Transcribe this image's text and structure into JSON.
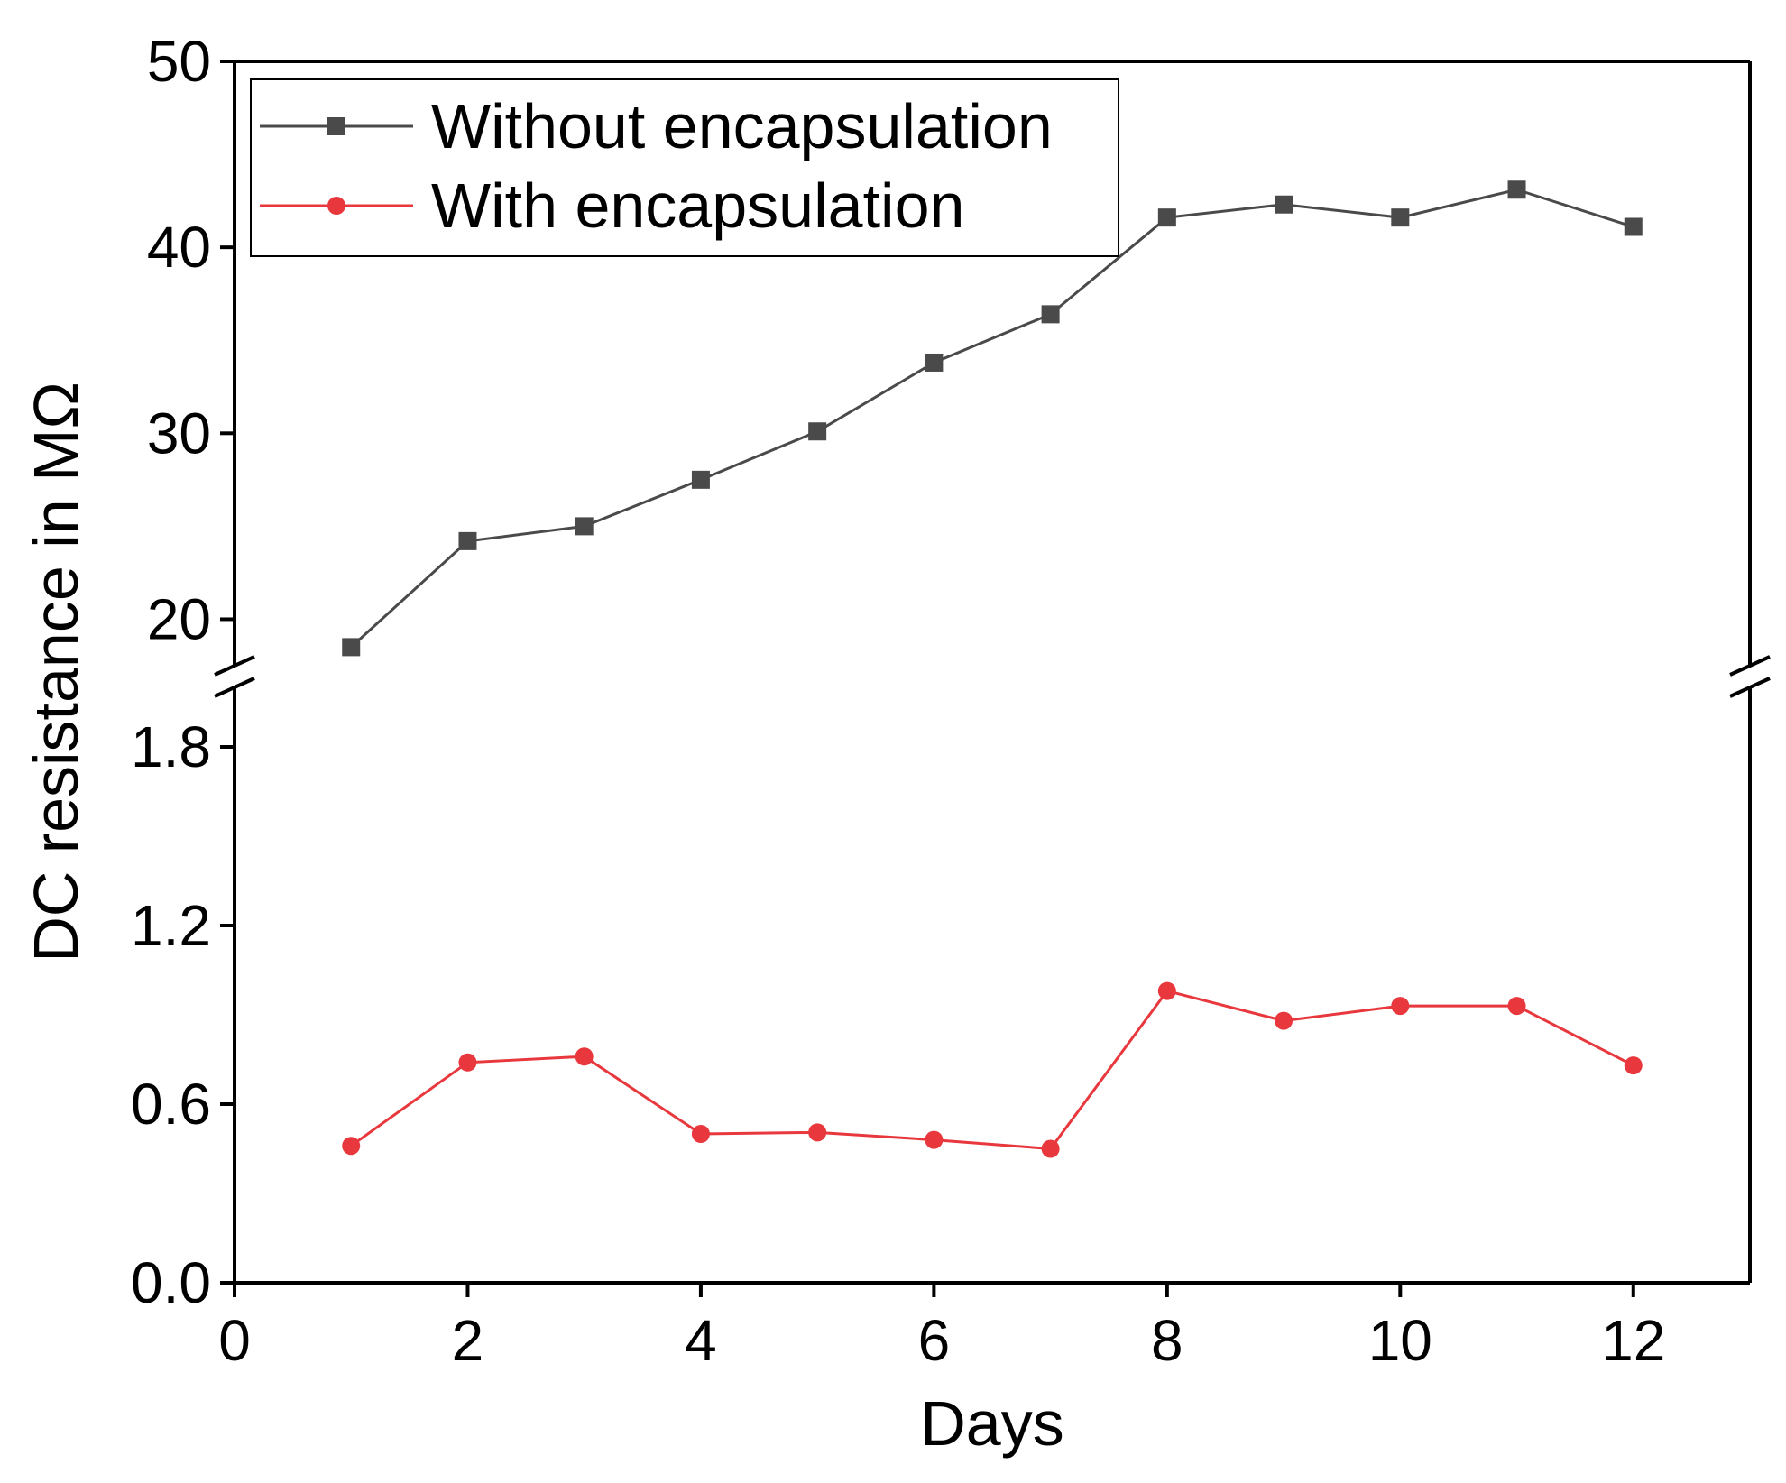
{
  "chart_data": {
    "type": "line",
    "title": "",
    "xlabel": "Days",
    "ylabel": "DC resistance in MΩ",
    "xlim": [
      0,
      13
    ],
    "x_ticks": [
      0,
      2,
      4,
      6,
      8,
      10,
      12
    ],
    "y_break": {
      "lower": {
        "range": [
          0,
          2.0
        ],
        "ticks": [
          0.0,
          0.6,
          1.2,
          1.8
        ],
        "tick_labels": [
          "0.0",
          "0.6",
          "1.2",
          "1.8"
        ]
      },
      "upper": {
        "range": [
          17.5,
          50
        ],
        "ticks": [
          20,
          30,
          40,
          50
        ],
        "tick_labels": [
          "20",
          "30",
          "40",
          "50"
        ]
      }
    },
    "grid": false,
    "legend_position": "top-left",
    "x": [
      1,
      2,
      3,
      4,
      5,
      6,
      7,
      8,
      9,
      10,
      11,
      12
    ],
    "series": [
      {
        "name": "Without encapsulation",
        "color": "#4a4a4a",
        "marker": "square",
        "segment": "upper",
        "values": [
          18.5,
          24.2,
          25.0,
          27.5,
          30.1,
          33.8,
          36.4,
          41.6,
          42.3,
          41.6,
          43.1,
          41.1
        ]
      },
      {
        "name": "With encapsulation",
        "color": "#e8383d",
        "marker": "circle",
        "segment": "lower",
        "values": [
          0.46,
          0.74,
          0.76,
          0.5,
          0.505,
          0.48,
          0.45,
          0.98,
          0.88,
          0.93,
          0.93,
          0.73
        ]
      }
    ]
  }
}
